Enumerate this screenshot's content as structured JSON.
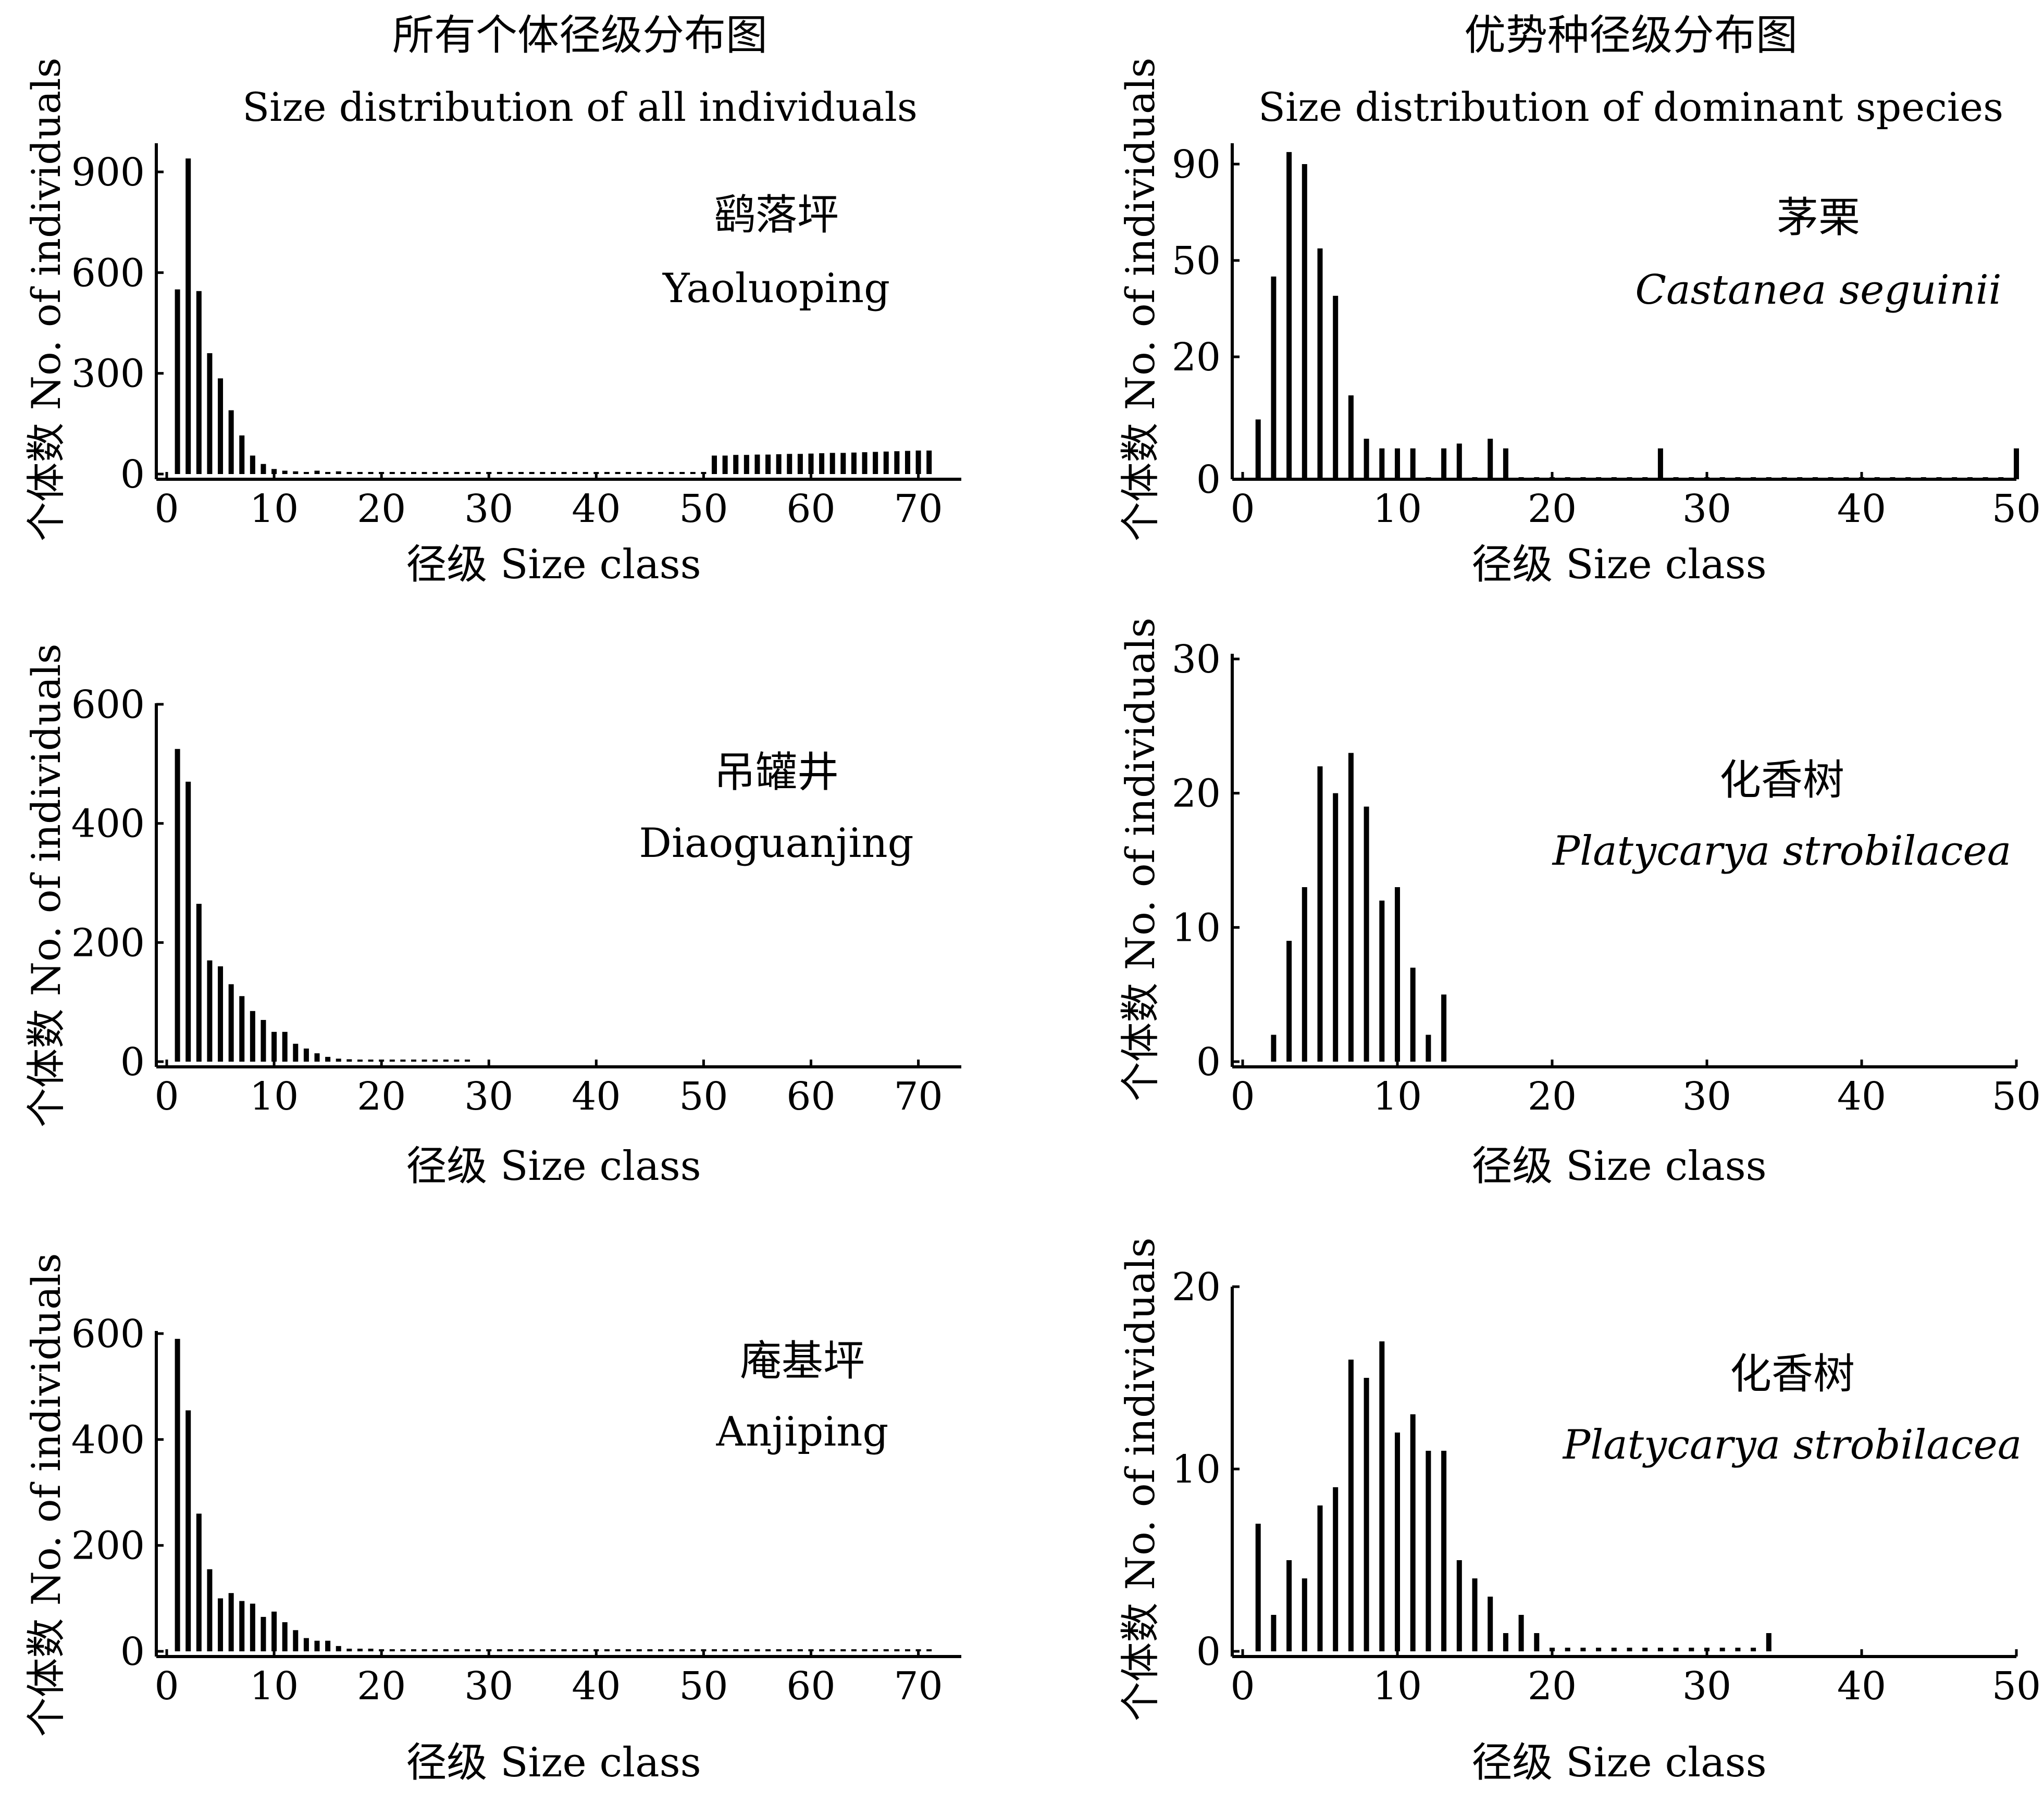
{
  "columns": [
    {
      "title_cn": "所有个体径级分布图",
      "title_en": "Size distribution of all individuals"
    },
    {
      "title_cn": "优势种径级分布图",
      "title_en": "Size distribution of dominant species"
    }
  ],
  "chart_data": [
    {
      "type": "bar",
      "panel": "left-top",
      "site_cn": "鹞落坪",
      "site_en": "Yaoluoping",
      "site_italic": false,
      "ylabel": "个体数 No. of individuals",
      "xlabel": "径级 Size class",
      "xlim": [
        0,
        74
      ],
      "ylim": [
        0,
        980
      ],
      "xticks": [
        0,
        10,
        20,
        30,
        40,
        50,
        60,
        70
      ],
      "yticks": [
        0,
        300,
        600,
        900
      ],
      "x": [
        1,
        2,
        3,
        4,
        5,
        6,
        7,
        8,
        9,
        10,
        11,
        12,
        13,
        14,
        15,
        16,
        17,
        18,
        19,
        20,
        21,
        22,
        23,
        24,
        25,
        26,
        27,
        28,
        29,
        30,
        31,
        32,
        33,
        34,
        35,
        36,
        37,
        38,
        39,
        40,
        41,
        42,
        43,
        44,
        45,
        46,
        47,
        48,
        49,
        50,
        51,
        52,
        53,
        54,
        55,
        56,
        57,
        58,
        59,
        60,
        61,
        62,
        63,
        64,
        65,
        66,
        67,
        68,
        69,
        70,
        71
      ],
      "values": [
        550,
        940,
        545,
        360,
        285,
        190,
        115,
        55,
        30,
        15,
        10,
        8,
        6,
        10,
        6,
        8,
        5,
        5,
        4,
        4,
        3,
        3,
        3,
        3,
        2,
        2,
        2,
        2,
        2,
        2,
        2,
        2,
        2,
        2,
        2,
        2,
        2,
        2,
        2,
        2,
        2,
        2,
        2,
        2,
        2,
        2,
        2,
        2,
        2,
        2,
        55,
        55,
        57,
        57,
        58,
        58,
        59,
        60,
        60,
        61,
        62,
        63,
        63,
        64,
        65,
        66,
        67,
        68,
        69,
        70,
        70
      ]
    },
    {
      "type": "bar",
      "panel": "right-top",
      "site_cn": "茅栗",
      "site_en": "Castanea seguinii",
      "site_italic": true,
      "ylabel": "个体数 No. of individuals",
      "xlabel": "径级 Size class",
      "xlim": [
        0,
        50
      ],
      "ytick_positions": [
        0,
        20,
        50,
        90
      ],
      "xticks": [
        0,
        10,
        20,
        30,
        40,
        50
      ],
      "yticks": [
        0,
        20,
        50,
        90
      ],
      "x": [
        1,
        2,
        3,
        4,
        5,
        6,
        7,
        8,
        9,
        10,
        11,
        12,
        13,
        14,
        15,
        16,
        17,
        18,
        19,
        20,
        21,
        22,
        23,
        24,
        25,
        26,
        27,
        28,
        29,
        30,
        31,
        32,
        33,
        34,
        35,
        36,
        37,
        38,
        39,
        40,
        41,
        42,
        43,
        44,
        45,
        46,
        47,
        48,
        49,
        50
      ],
      "values": [
        7,
        45,
        95,
        90,
        55,
        39,
        12,
        3,
        1,
        1,
        1,
        0,
        1,
        2,
        0,
        3,
        1,
        0,
        0,
        0,
        0,
        0,
        0,
        0,
        0,
        0,
        1,
        0,
        0,
        0,
        0,
        0,
        0,
        0,
        0,
        0,
        0,
        0,
        0,
        0,
        0,
        0,
        0,
        0,
        0,
        0,
        0,
        0,
        0,
        1
      ]
    },
    {
      "type": "bar",
      "panel": "left-middle",
      "site_cn": "吊罐井",
      "site_en": "Diaoguanjing",
      "site_italic": false,
      "ylabel": "个体数 No. of individuals",
      "xlabel": "径级 Size class",
      "xlim": [
        0,
        74
      ],
      "ylim": [
        0,
        600
      ],
      "xticks": [
        0,
        10,
        20,
        30,
        40,
        50,
        60,
        70
      ],
      "yticks": [
        0,
        200,
        400,
        600
      ],
      "x": [
        1,
        2,
        3,
        4,
        5,
        6,
        7,
        8,
        9,
        10,
        11,
        12,
        13,
        14,
        15,
        16,
        17,
        18,
        19,
        20,
        21,
        22,
        23,
        24,
        25,
        26,
        27,
        28
      ],
      "values": [
        525,
        470,
        265,
        170,
        160,
        130,
        110,
        85,
        70,
        50,
        50,
        30,
        22,
        14,
        8,
        5,
        4,
        3,
        2,
        2,
        2,
        1,
        1,
        1,
        1,
        1,
        1,
        1
      ]
    },
    {
      "type": "bar",
      "panel": "right-middle",
      "site_cn": "化香树",
      "site_en": "Platycarya strobilacea",
      "site_italic": true,
      "ylabel": "个体数 No. of individuals",
      "xlabel": "径级 Size class",
      "xlim": [
        0,
        50
      ],
      "ylim": [
        0,
        30
      ],
      "xticks": [
        0,
        10,
        20,
        30,
        40,
        50
      ],
      "yticks": [
        0,
        10,
        20,
        30
      ],
      "x": [
        2,
        3,
        4,
        5,
        6,
        7,
        8,
        9,
        10,
        11,
        12,
        13
      ],
      "values": [
        2,
        9,
        13,
        22,
        20,
        23,
        19,
        12,
        13,
        7,
        2,
        5
      ]
    },
    {
      "type": "bar",
      "panel": "left-bottom",
      "site_cn": "庵基坪",
      "site_en": "Anjiping",
      "site_italic": false,
      "ylabel": "个体数 No. of individuals",
      "xlabel": "径级 Size class",
      "xlim": [
        0,
        74
      ],
      "ylim": [
        0,
        600
      ],
      "xticks": [
        0,
        10,
        20,
        30,
        40,
        50,
        60,
        70
      ],
      "yticks": [
        0,
        200,
        400,
        600
      ],
      "x": [
        1,
        2,
        3,
        4,
        5,
        6,
        7,
        8,
        9,
        10,
        11,
        12,
        13,
        14,
        15,
        16,
        17,
        18,
        19,
        20,
        21,
        22,
        23,
        24,
        25,
        26,
        27,
        28,
        29,
        30,
        31,
        32,
        33,
        34,
        35,
        36,
        37,
        38,
        39,
        40,
        41,
        42,
        43,
        44,
        45,
        46,
        47,
        48,
        49,
        50,
        51,
        52,
        53,
        54,
        55,
        56,
        57,
        58,
        59,
        60,
        61,
        62,
        63,
        64,
        65,
        66,
        67,
        68,
        69,
        70,
        71
      ],
      "values": [
        590,
        455,
        260,
        155,
        100,
        110,
        95,
        90,
        65,
        75,
        55,
        40,
        25,
        20,
        20,
        10,
        5,
        5,
        5,
        4,
        4,
        3,
        3,
        3,
        3,
        2,
        2,
        2,
        2,
        2,
        2,
        2,
        2,
        2,
        2,
        2,
        2,
        2,
        2,
        2,
        2,
        2,
        2,
        2,
        2,
        2,
        2,
        2,
        2,
        2,
        2,
        2,
        2,
        2,
        2,
        2,
        2,
        2,
        2,
        2,
        2,
        2,
        2,
        2,
        2,
        2,
        2,
        2,
        2,
        2,
        2
      ]
    },
    {
      "type": "bar",
      "panel": "right-bottom",
      "site_cn": "化香树",
      "site_en": "Platycarya strobilacea",
      "site_italic": true,
      "ylabel": "个体数 No. of individuals",
      "xlabel": "径级 Size class",
      "xlim": [
        0,
        50
      ],
      "ylim": [
        0,
        20
      ],
      "xticks": [
        0,
        10,
        20,
        30,
        40,
        50
      ],
      "yticks": [
        0,
        10,
        20
      ],
      "x": [
        1,
        2,
        3,
        4,
        5,
        6,
        7,
        8,
        9,
        10,
        11,
        12,
        13,
        14,
        15,
        16,
        17,
        18,
        19,
        20,
        21,
        22,
        23,
        24,
        25,
        26,
        27,
        28,
        29,
        30,
        31,
        32,
        33,
        34
      ],
      "values": [
        7,
        2,
        5,
        4,
        8,
        9,
        16,
        15,
        17,
        12,
        13,
        11,
        11,
        5,
        4,
        3,
        1,
        2,
        1,
        0.2,
        0.2,
        0.2,
        0.2,
        0.2,
        0.2,
        0.2,
        0.2,
        0.2,
        0.2,
        0.2,
        0.2,
        0.2,
        0.2,
        1
      ]
    }
  ]
}
